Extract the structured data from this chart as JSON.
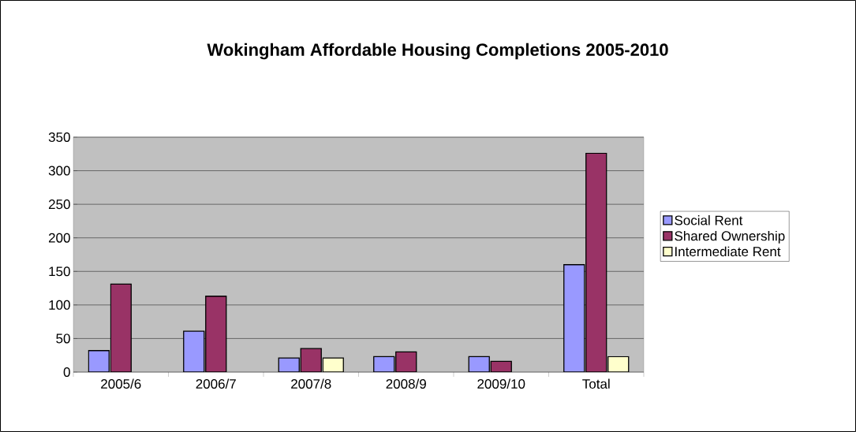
{
  "chart_data": {
    "type": "bar",
    "title": "Wokingham Affordable Housing Completions 2005-2010",
    "categories": [
      "2005/6",
      "2006/7",
      "2007/8",
      "2008/9",
      "2009/10",
      "Total"
    ],
    "series": [
      {
        "name": "Social Rent",
        "color": "#9999ff",
        "values": [
          32,
          61,
          21,
          23,
          23,
          160
        ]
      },
      {
        "name": "Shared Ownership",
        "color": "#993366",
        "values": [
          131,
          113,
          35,
          30,
          16,
          326
        ]
      },
      {
        "name": "Intermediate Rent",
        "color": "#ffffcc",
        "values": [
          null,
          null,
          21,
          null,
          null,
          23
        ]
      }
    ],
    "ylim": [
      0,
      350
    ],
    "yticks": [
      0,
      50,
      100,
      150,
      200,
      250,
      300,
      350
    ],
    "grid": "y",
    "legend": "right"
  }
}
